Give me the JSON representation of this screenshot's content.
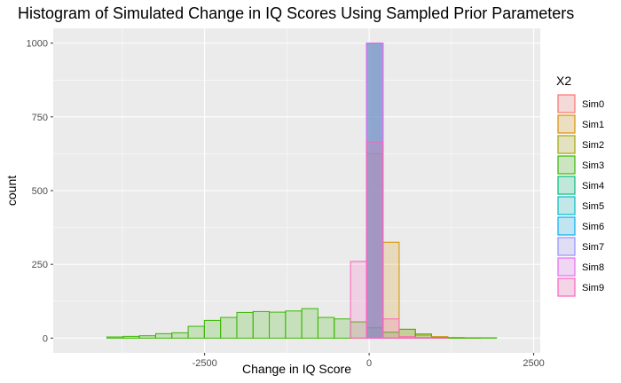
{
  "chart_data": {
    "type": "histogram",
    "title": "Histogram of Simulated Change in IQ Scores Using Sampled Prior Parameters",
    "xlabel": "Change in IQ Score",
    "ylabel": "count",
    "xlim": [
      -4800,
      2600
    ],
    "ylim": [
      -50,
      1050
    ],
    "x_ticks": [
      -2500,
      0,
      2500
    ],
    "x_tick_labels": [
      "-2500",
      "0",
      "2500"
    ],
    "y_ticks": [
      0,
      250,
      500,
      750,
      1000
    ],
    "y_tick_labels": [
      "0",
      "250",
      "500",
      "750",
      "1000"
    ],
    "grid": true,
    "legend": {
      "title": "X2",
      "position": "right"
    },
    "bins": [
      -4354,
      -4108,
      -3861,
      -3614,
      -3368,
      -3121,
      -2874,
      -2627,
      -2381,
      -2134,
      -1887,
      -1641,
      -1394,
      -1147,
      -901,
      -654,
      -407,
      -160,
      86,
      333,
      580,
      826,
      1073,
      1320,
      1566,
      1813,
      2060,
      2306
    ],
    "series": [
      {
        "name": "Sim0",
        "color": "#F8766D",
        "values": [
          0,
          0,
          0,
          0,
          0,
          0,
          0,
          0,
          0,
          0,
          0,
          0,
          0,
          0,
          0,
          0,
          0,
          0,
          1000,
          0,
          0,
          0,
          0,
          0,
          0,
          0,
          0,
          0
        ]
      },
      {
        "name": "Sim1",
        "color": "#D89000",
        "values": [
          0,
          0,
          0,
          0,
          0,
          0,
          0,
          0,
          0,
          0,
          0,
          0,
          0,
          0,
          0,
          0,
          0,
          0,
          625,
          325,
          30,
          10,
          5,
          2,
          1,
          0,
          0,
          0
        ]
      },
      {
        "name": "Sim2",
        "color": "#A3A500",
        "values": [
          0,
          0,
          0,
          0,
          0,
          0,
          0,
          0,
          0,
          0,
          0,
          0,
          0,
          0,
          0,
          0,
          0,
          0,
          1000,
          0,
          0,
          0,
          0,
          0,
          0,
          0,
          0,
          0
        ]
      },
      {
        "name": "Sim3",
        "color": "#39B600",
        "values": [
          0,
          0,
          4,
          6,
          8,
          15,
          18,
          40,
          60,
          70,
          87,
          90,
          88,
          92,
          100,
          70,
          65,
          55,
          35,
          20,
          30,
          14,
          3,
          1,
          1,
          1,
          0,
          0
        ]
      },
      {
        "name": "Sim4",
        "color": "#00BF7D",
        "values": [
          0,
          0,
          0,
          0,
          0,
          0,
          0,
          0,
          0,
          0,
          0,
          0,
          0,
          0,
          0,
          0,
          0,
          0,
          1000,
          0,
          0,
          0,
          0,
          0,
          0,
          0,
          0,
          0
        ]
      },
      {
        "name": "Sim5",
        "color": "#00BFC4",
        "values": [
          0,
          0,
          0,
          0,
          0,
          0,
          0,
          0,
          0,
          0,
          0,
          0,
          0,
          0,
          0,
          0,
          0,
          0,
          1000,
          0,
          0,
          0,
          0,
          0,
          0,
          0,
          0,
          0
        ]
      },
      {
        "name": "Sim6",
        "color": "#00B0F6",
        "values": [
          0,
          0,
          0,
          0,
          0,
          0,
          0,
          0,
          0,
          0,
          0,
          0,
          0,
          0,
          0,
          0,
          0,
          0,
          1000,
          0,
          0,
          0,
          0,
          0,
          0,
          0,
          0,
          0
        ]
      },
      {
        "name": "Sim7",
        "color": "#9590FF",
        "values": [
          0,
          0,
          0,
          0,
          0,
          0,
          0,
          0,
          0,
          0,
          0,
          0,
          0,
          0,
          0,
          0,
          0,
          0,
          1000,
          0,
          0,
          0,
          0,
          0,
          0,
          0,
          0,
          0
        ]
      },
      {
        "name": "Sim8",
        "color": "#E76BF3",
        "values": [
          0,
          0,
          0,
          0,
          0,
          0,
          0,
          0,
          0,
          0,
          0,
          0,
          0,
          0,
          0,
          0,
          0,
          0,
          1000,
          0,
          0,
          0,
          0,
          0,
          0,
          0,
          0,
          0
        ]
      },
      {
        "name": "Sim9",
        "color": "#FF62BC",
        "values": [
          0,
          0,
          0,
          0,
          0,
          0,
          0,
          0,
          0,
          0,
          0,
          0,
          0,
          0,
          0,
          0,
          0,
          260,
          665,
          65,
          5,
          2,
          1,
          0,
          0,
          0,
          0,
          0
        ]
      }
    ]
  }
}
